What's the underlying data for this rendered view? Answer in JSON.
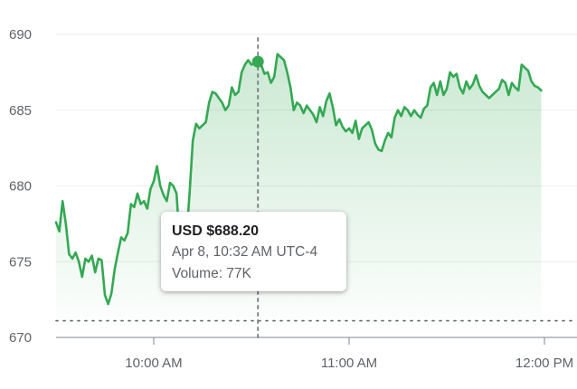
{
  "chart_data": {
    "type": "area",
    "title": "",
    "xlabel": "",
    "ylabel": "",
    "ylim": [
      670,
      690
    ],
    "xlim": [
      "09:30",
      "12:10"
    ],
    "yticks": [
      670,
      675,
      680,
      685,
      690
    ],
    "ytick_labels": [
      "670",
      "675",
      "680",
      "685",
      "690"
    ],
    "xticks": [
      "10:00",
      "11:00",
      "12:00"
    ],
    "xtick_labels": [
      "10:00 AM",
      "11:00 AM",
      "12:00 PM"
    ],
    "grid": true,
    "line_color": "#34a853",
    "previous_close": 671.1,
    "series": [
      {
        "points": [
          [
            "09:30",
            677.6
          ],
          [
            "09:31",
            677.0
          ],
          [
            "09:32",
            679.0
          ],
          [
            "09:33",
            677.5
          ],
          [
            "09:34",
            675.5
          ],
          [
            "09:35",
            675.2
          ],
          [
            "09:36",
            675.6
          ],
          [
            "09:37",
            675.0
          ],
          [
            "09:38",
            674.0
          ],
          [
            "09:39",
            675.2
          ],
          [
            "09:40",
            675.0
          ],
          [
            "09:41",
            675.4
          ],
          [
            "09:42",
            674.3
          ],
          [
            "09:43",
            675.2
          ],
          [
            "09:44",
            675.1
          ],
          [
            "09:45",
            672.8
          ],
          [
            "09:46",
            672.2
          ],
          [
            "09:47",
            672.9
          ],
          [
            "09:48",
            674.5
          ],
          [
            "09:49",
            675.6
          ],
          [
            "09:50",
            676.6
          ],
          [
            "09:51",
            676.4
          ],
          [
            "09:52",
            676.9
          ],
          [
            "09:53",
            678.8
          ],
          [
            "09:54",
            678.6
          ],
          [
            "09:55",
            679.5
          ],
          [
            "09:56",
            678.8
          ],
          [
            "09:57",
            679.0
          ],
          [
            "09:58",
            678.5
          ],
          [
            "09:59",
            679.8
          ],
          [
            "10:00",
            680.3
          ],
          [
            "10:01",
            681.3
          ],
          [
            "10:02",
            680.0
          ],
          [
            "10:03",
            679.4
          ],
          [
            "10:04",
            679.0
          ],
          [
            "10:05",
            680.2
          ],
          [
            "10:06",
            680.0
          ],
          [
            "10:07",
            679.5
          ],
          [
            "10:08",
            676.2
          ],
          [
            "10:09",
            676.0
          ],
          [
            "10:10",
            676.5
          ],
          [
            "10:11",
            679.5
          ],
          [
            "10:12",
            683.0
          ],
          [
            "10:13",
            684.1
          ],
          [
            "10:14",
            683.8
          ],
          [
            "10:15",
            684.0
          ],
          [
            "10:16",
            684.2
          ],
          [
            "10:17",
            685.5
          ],
          [
            "10:18",
            686.2
          ],
          [
            "10:19",
            686.1
          ],
          [
            "10:20",
            685.8
          ],
          [
            "10:21",
            685.5
          ],
          [
            "10:22",
            685.0
          ],
          [
            "10:23",
            685.3
          ],
          [
            "10:24",
            686.5
          ],
          [
            "10:25",
            686.0
          ],
          [
            "10:26",
            686.2
          ],
          [
            "10:27",
            687.5
          ],
          [
            "10:28",
            688.0
          ],
          [
            "10:29",
            688.3
          ],
          [
            "10:30",
            688.0
          ],
          [
            "10:31",
            688.1
          ],
          [
            "10:32",
            688.2
          ],
          [
            "10:33",
            688.0
          ],
          [
            "10:34",
            687.4
          ],
          [
            "10:35",
            687.5
          ],
          [
            "10:36",
            686.8
          ],
          [
            "10:37",
            687.2
          ],
          [
            "10:38",
            688.7
          ],
          [
            "10:39",
            688.5
          ],
          [
            "10:40",
            688.3
          ],
          [
            "10:41",
            687.5
          ],
          [
            "10:42",
            686.5
          ],
          [
            "10:43",
            685.0
          ],
          [
            "10:44",
            685.5
          ],
          [
            "10:45",
            685.3
          ],
          [
            "10:46",
            684.8
          ],
          [
            "10:47",
            685.3
          ],
          [
            "10:48",
            685.0
          ],
          [
            "10:49",
            684.7
          ],
          [
            "10:50",
            684.2
          ],
          [
            "10:51",
            685.2
          ],
          [
            "10:52",
            684.6
          ],
          [
            "10:53",
            685.6
          ],
          [
            "10:54",
            686.1
          ],
          [
            "10:55",
            685.2
          ],
          [
            "10:56",
            684.0
          ],
          [
            "10:57",
            684.4
          ],
          [
            "10:58",
            683.9
          ],
          [
            "10:59",
            683.6
          ],
          [
            "11:00",
            683.8
          ],
          [
            "11:01",
            683.5
          ],
          [
            "11:02",
            684.3
          ],
          [
            "11:03",
            683.1
          ],
          [
            "11:04",
            683.8
          ],
          [
            "11:05",
            684.0
          ],
          [
            "11:06",
            684.2
          ],
          [
            "11:07",
            683.7
          ],
          [
            "11:08",
            682.8
          ],
          [
            "11:09",
            682.4
          ],
          [
            "11:10",
            682.3
          ],
          [
            "11:11",
            683.0
          ],
          [
            "11:12",
            683.5
          ],
          [
            "11:13",
            683.2
          ],
          [
            "11:14",
            684.5
          ],
          [
            "11:15",
            685.0
          ],
          [
            "11:16",
            684.6
          ],
          [
            "11:17",
            685.2
          ],
          [
            "11:18",
            685.0
          ],
          [
            "11:19",
            684.6
          ],
          [
            "11:20",
            685.0
          ],
          [
            "11:21",
            684.7
          ],
          [
            "11:22",
            684.5
          ],
          [
            "11:23",
            685.1
          ],
          [
            "11:24",
            685.3
          ],
          [
            "11:25",
            686.5
          ],
          [
            "11:26",
            686.8
          ],
          [
            "11:27",
            686.0
          ],
          [
            "11:28",
            686.9
          ],
          [
            "11:29",
            686.0
          ],
          [
            "11:30",
            686.4
          ],
          [
            "11:31",
            687.5
          ],
          [
            "11:32",
            687.2
          ],
          [
            "11:33",
            687.4
          ],
          [
            "11:34",
            686.5
          ],
          [
            "11:35",
            686.1
          ],
          [
            "11:36",
            686.9
          ],
          [
            "11:37",
            686.4
          ],
          [
            "11:38",
            686.7
          ],
          [
            "11:39",
            687.3
          ],
          [
            "11:40",
            686.6
          ],
          [
            "11:41",
            686.2
          ],
          [
            "11:42",
            686.0
          ],
          [
            "11:43",
            685.8
          ],
          [
            "11:44",
            686.0
          ],
          [
            "11:45",
            686.2
          ],
          [
            "11:46",
            686.4
          ],
          [
            "11:47",
            687.0
          ],
          [
            "11:48",
            686.8
          ],
          [
            "11:49",
            686.0
          ],
          [
            "11:50",
            686.8
          ],
          [
            "11:51",
            686.5
          ],
          [
            "11:52",
            686.3
          ],
          [
            "11:53",
            688.0
          ],
          [
            "11:54",
            687.8
          ],
          [
            "11:55",
            687.6
          ],
          [
            "11:56",
            686.9
          ],
          [
            "11:57",
            686.6
          ],
          [
            "11:58",
            686.5
          ],
          [
            "11:59",
            686.3
          ]
        ]
      }
    ],
    "hover": {
      "time": "10:32",
      "value": 688.2,
      "price_label": "USD $688.20",
      "time_label": "Apr 8, 10:32 AM UTC-4",
      "volume_label": "Volume: 77K"
    }
  }
}
